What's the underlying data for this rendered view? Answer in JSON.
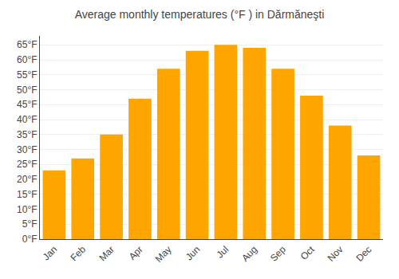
{
  "chart_data": {
    "type": "bar",
    "title": "Average monthly temperatures (°F ) in Dărmăneşti",
    "categories": [
      "Jan",
      "Feb",
      "Mar",
      "Apr",
      "May",
      "Jun",
      "Jul",
      "Aug",
      "Sep",
      "Oct",
      "Nov",
      "Dec"
    ],
    "values": [
      23,
      27,
      35,
      47,
      57,
      63,
      65,
      64,
      57,
      48,
      38,
      28
    ],
    "color": "#FFA500",
    "ylim": [
      0,
      68
    ],
    "yticks": [
      {
        "value": 0,
        "label": "0°F"
      },
      {
        "value": 5,
        "label": "5°F"
      },
      {
        "value": 10,
        "label": "10°F"
      },
      {
        "value": 15,
        "label": "15°F"
      },
      {
        "value": 20,
        "label": "20°F"
      },
      {
        "value": 25,
        "label": "25°F"
      },
      {
        "value": 30,
        "label": "30°F"
      },
      {
        "value": 35,
        "label": "35°F"
      },
      {
        "value": 40,
        "label": "40°F"
      },
      {
        "value": 45,
        "label": "45°F"
      },
      {
        "value": 50,
        "label": "50°F"
      },
      {
        "value": 55,
        "label": "55°F"
      },
      {
        "value": 60,
        "label": "60°F"
      },
      {
        "value": 65,
        "label": "65°F"
      }
    ],
    "grid": true
  }
}
